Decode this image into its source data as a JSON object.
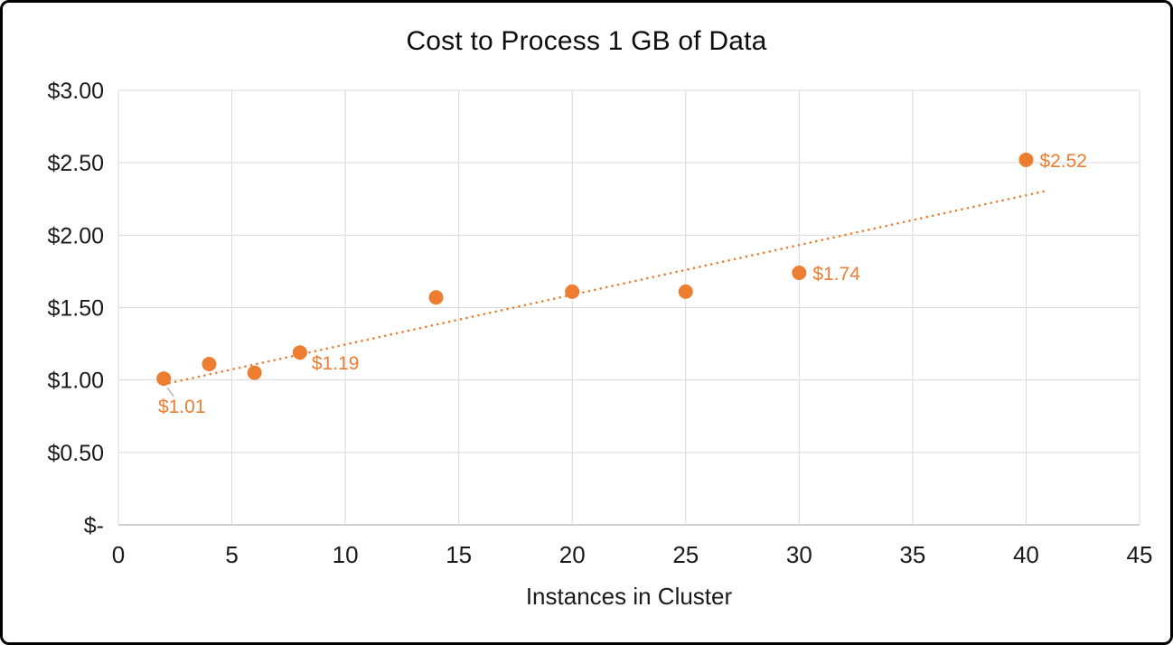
{
  "chart_data": {
    "type": "scatter",
    "title": "Cost to Process 1 GB of Data",
    "xlabel": "Instances in Cluster",
    "ylabel": "",
    "points": [
      {
        "x": 2,
        "y": 1.01
      },
      {
        "x": 4,
        "y": 1.11
      },
      {
        "x": 6,
        "y": 1.05
      },
      {
        "x": 8,
        "y": 1.19
      },
      {
        "x": 14,
        "y": 1.57
      },
      {
        "x": 20,
        "y": 1.61
      },
      {
        "x": 25,
        "y": 1.61
      },
      {
        "x": 30,
        "y": 1.74
      },
      {
        "x": 40,
        "y": 2.52
      }
    ],
    "data_labels": [
      {
        "point_index": 0,
        "text": "$1.01",
        "position": "below",
        "leader_line": true
      },
      {
        "point_index": 3,
        "text": "$1.19",
        "position": "right-below",
        "leader_line": false
      },
      {
        "point_index": 7,
        "text": "$1.74",
        "position": "right",
        "leader_line": false
      },
      {
        "point_index": 8,
        "text": "$2.52",
        "position": "right",
        "leader_line": false
      }
    ],
    "trendline": {
      "style": "dotted",
      "x_start": 2,
      "y_start": 0.97,
      "x_end": 41,
      "y_end": 2.31
    },
    "xlim": [
      0,
      45
    ],
    "ylim": [
      0,
      3
    ],
    "x_ticks": [
      {
        "value": 0,
        "label": "0"
      },
      {
        "value": 5,
        "label": "5"
      },
      {
        "value": 10,
        "label": "10"
      },
      {
        "value": 15,
        "label": "15"
      },
      {
        "value": 20,
        "label": "20"
      },
      {
        "value": 25,
        "label": "25"
      },
      {
        "value": 30,
        "label": "30"
      },
      {
        "value": 35,
        "label": "35"
      },
      {
        "value": 40,
        "label": "40"
      },
      {
        "value": 45,
        "label": "45"
      }
    ],
    "y_ticks": [
      {
        "value": 0,
        "label": "$-"
      },
      {
        "value": 0.5,
        "label": "$0.50"
      },
      {
        "value": 1,
        "label": "$1.00"
      },
      {
        "value": 1.5,
        "label": "$1.50"
      },
      {
        "value": 2,
        "label": "$2.00"
      },
      {
        "value": 2.5,
        "label": "$2.50"
      },
      {
        "value": 3,
        "label": "$3.00"
      }
    ],
    "grid": true,
    "legend": "none",
    "colors": {
      "point": "#ED7D31",
      "trendline": "#ED7D31",
      "data_label": "#ED7D31",
      "gridline": "#D9D9D9",
      "axis_line": "#BFBFBF",
      "tick_text": "#1a1a1a",
      "title_text": "#0d0d0d",
      "leader_line": "#A6A6A6"
    }
  }
}
